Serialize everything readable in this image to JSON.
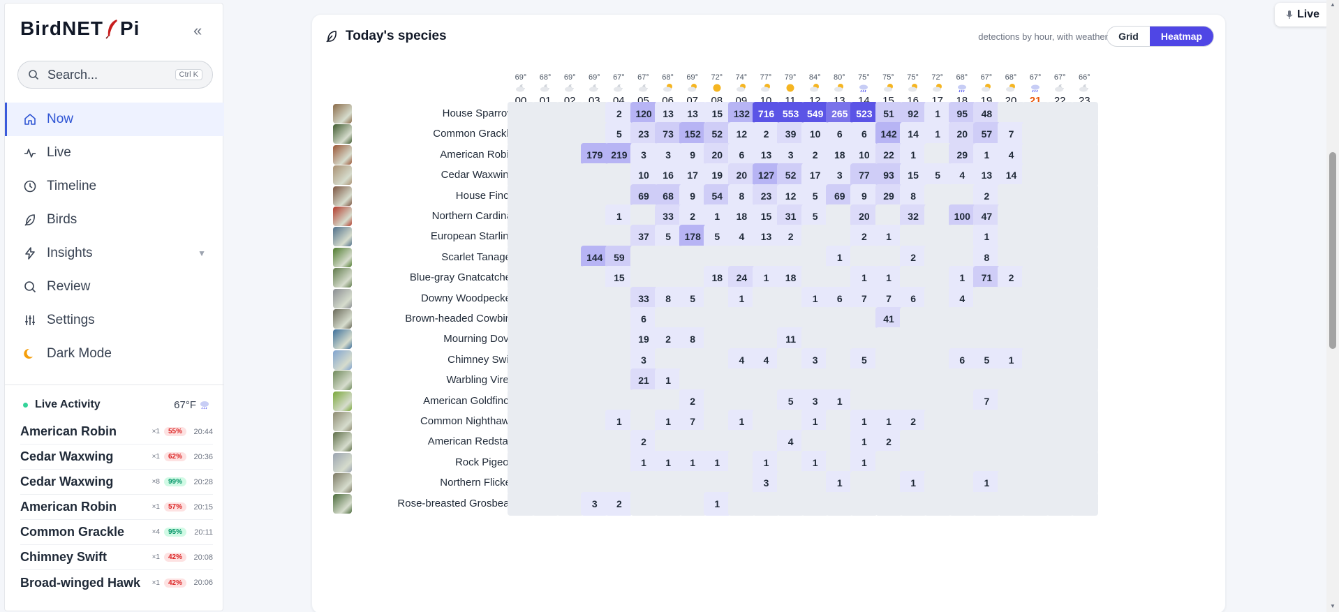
{
  "brand": {
    "name_left": "BirdNET",
    "name_right": "Pi"
  },
  "search": {
    "placeholder": "Search...",
    "shortcut": "Ctrl K"
  },
  "nav": [
    {
      "label": "Now",
      "icon": "home-icon",
      "active": true
    },
    {
      "label": "Live",
      "icon": "pulse-icon"
    },
    {
      "label": "Timeline",
      "icon": "clock-icon"
    },
    {
      "label": "Birds",
      "icon": "feather-icon"
    },
    {
      "label": "Insights",
      "icon": "bolt-icon",
      "caret": "▼"
    },
    {
      "label": "Review",
      "icon": "search-icon"
    },
    {
      "label": "Settings",
      "icon": "sliders-icon"
    },
    {
      "label": "Dark Mode",
      "icon": "moon-icon"
    }
  ],
  "live_activity": {
    "title": "Live Activity",
    "temp": "67°F",
    "items": [
      {
        "name": "American Robin",
        "count": "×1",
        "conf": "55%",
        "conf_level": "low",
        "time": "20:44"
      },
      {
        "name": "Cedar Waxwing",
        "count": "×1",
        "conf": "62%",
        "conf_level": "low",
        "time": "20:36"
      },
      {
        "name": "Cedar Waxwing",
        "count": "×8",
        "conf": "99%",
        "conf_level": "high",
        "time": "20:28"
      },
      {
        "name": "American Robin",
        "count": "×1",
        "conf": "57%",
        "conf_level": "low",
        "time": "20:15"
      },
      {
        "name": "Common Grackle",
        "count": "×4",
        "conf": "95%",
        "conf_level": "high",
        "time": "20:11"
      },
      {
        "name": "Chimney Swift",
        "count": "×1",
        "conf": "42%",
        "conf_level": "low",
        "time": "20:08"
      },
      {
        "name": "Broad-winged Hawk",
        "count": "×1",
        "conf": "42%",
        "conf_level": "low",
        "time": "20:06"
      }
    ]
  },
  "card": {
    "title": "Today's species",
    "subtitle": "detections by hour, with weather",
    "toggle": [
      "Grid",
      "Heatmap"
    ],
    "active_view": "Heatmap"
  },
  "live_button": "Live",
  "hours": [
    "00",
    "01",
    "02",
    "03",
    "04",
    "05",
    "06",
    "07",
    "08",
    "09",
    "10",
    "11",
    "12",
    "13",
    "14",
    "15",
    "16",
    "17",
    "18",
    "19",
    "20",
    "21",
    "22",
    "23"
  ],
  "current_hour": "21",
  "temps": [
    "69°",
    "68°",
    "69°",
    "69°",
    "67°",
    "67°",
    "68°",
    "69°",
    "72°",
    "74°",
    "77°",
    "79°",
    "84°",
    "80°",
    "75°",
    "75°",
    "75°",
    "72°",
    "68°",
    "67°",
    "68°",
    "67°",
    "67°",
    "66°"
  ],
  "weather": [
    "cloud-moon",
    "cloud-moon",
    "cloud-moon",
    "cloud-moon",
    "cloud-moon",
    "cloud-moon",
    "cloud-sun",
    "cloud-sun",
    "sun",
    "cloud-sun",
    "cloud-sun",
    "sun",
    "cloud-sun",
    "cloud-sun",
    "rain",
    "cloud-sun",
    "cloud-sun",
    "cloud-sun",
    "rain",
    "cloud-sun",
    "cloud-sun",
    "rain",
    "cloud-moon",
    "cloud-moon"
  ],
  "species": [
    {
      "name": "House Sparrow",
      "color": "#8a6a48",
      "counts": [
        null,
        null,
        null,
        null,
        2,
        120,
        13,
        13,
        15,
        132,
        716,
        553,
        549,
        265,
        523,
        51,
        92,
        1,
        95,
        48,
        null,
        null,
        null,
        null
      ]
    },
    {
      "name": "Common Grackle",
      "color": "#3f5a2e",
      "counts": [
        null,
        null,
        null,
        null,
        5,
        23,
        73,
        152,
        52,
        12,
        2,
        39,
        10,
        6,
        6,
        142,
        14,
        1,
        20,
        57,
        7,
        null,
        null,
        null
      ]
    },
    {
      "name": "American Robin",
      "color": "#9a5535",
      "counts": [
        null,
        null,
        null,
        179,
        219,
        3,
        3,
        9,
        20,
        6,
        13,
        3,
        2,
        18,
        10,
        22,
        1,
        null,
        29,
        1,
        4,
        null,
        null,
        null
      ]
    },
    {
      "name": "Cedar Waxwing",
      "color": "#a99072",
      "counts": [
        null,
        null,
        null,
        null,
        null,
        10,
        16,
        17,
        19,
        20,
        127,
        52,
        17,
        3,
        77,
        93,
        15,
        5,
        4,
        13,
        14,
        null,
        null,
        null
      ]
    },
    {
      "name": "House Finch",
      "color": "#7c5440",
      "counts": [
        null,
        null,
        null,
        null,
        null,
        69,
        68,
        9,
        54,
        8,
        23,
        12,
        5,
        69,
        9,
        29,
        8,
        null,
        null,
        2,
        null,
        null,
        null,
        null
      ]
    },
    {
      "name": "Northern Cardinal",
      "color": "#b23a2a",
      "counts": [
        null,
        null,
        null,
        null,
        1,
        null,
        33,
        2,
        1,
        18,
        15,
        31,
        5,
        null,
        20,
        null,
        32,
        null,
        100,
        47,
        null,
        null,
        null,
        null
      ]
    },
    {
      "name": "European Starling",
      "color": "#4f6f8a",
      "counts": [
        null,
        null,
        null,
        null,
        null,
        37,
        5,
        178,
        5,
        4,
        13,
        2,
        null,
        null,
        2,
        1,
        null,
        null,
        null,
        1,
        null,
        null,
        null,
        null
      ]
    },
    {
      "name": "Scarlet Tanager",
      "color": "#4d7a2c",
      "counts": [
        null,
        null,
        null,
        144,
        59,
        null,
        null,
        null,
        null,
        null,
        null,
        null,
        null,
        1,
        null,
        null,
        2,
        null,
        null,
        8,
        null,
        null,
        null,
        null
      ]
    },
    {
      "name": "Blue-gray Gnatcatcher",
      "color": "#5f7a4a",
      "counts": [
        null,
        null,
        null,
        null,
        15,
        null,
        null,
        null,
        18,
        24,
        1,
        18,
        null,
        null,
        1,
        1,
        null,
        null,
        1,
        71,
        2,
        null,
        null,
        null
      ]
    },
    {
      "name": "Downy Woodpecker",
      "color": "#8a8e92",
      "counts": [
        null,
        null,
        null,
        null,
        null,
        33,
        8,
        5,
        null,
        1,
        null,
        null,
        1,
        6,
        7,
        7,
        6,
        null,
        4,
        null,
        null,
        null,
        null,
        null
      ]
    },
    {
      "name": "Brown-headed Cowbird",
      "color": "#6a6a5a",
      "counts": [
        null,
        null,
        null,
        null,
        null,
        6,
        null,
        null,
        null,
        null,
        null,
        null,
        null,
        null,
        null,
        41,
        null,
        null,
        null,
        null,
        null,
        null,
        null,
        null
      ]
    },
    {
      "name": "Mourning Dove",
      "color": "#3d6f9a",
      "counts": [
        null,
        null,
        null,
        null,
        null,
        19,
        2,
        8,
        null,
        null,
        null,
        11,
        null,
        null,
        null,
        null,
        null,
        null,
        null,
        null,
        null,
        null,
        null,
        null
      ]
    },
    {
      "name": "Chimney Swift",
      "color": "#7fa3cf",
      "counts": [
        null,
        null,
        null,
        null,
        null,
        3,
        null,
        null,
        null,
        4,
        4,
        null,
        3,
        null,
        5,
        null,
        null,
        null,
        6,
        5,
        1,
        null,
        null,
        null
      ]
    },
    {
      "name": "Warbling Vireo",
      "color": "#6f8a5a",
      "counts": [
        null,
        null,
        null,
        null,
        null,
        21,
        1,
        null,
        null,
        null,
        null,
        null,
        null,
        null,
        null,
        null,
        null,
        null,
        null,
        null,
        null,
        null,
        null,
        null
      ]
    },
    {
      "name": "American Goldfinch",
      "color": "#7aa83a",
      "counts": [
        null,
        null,
        null,
        null,
        null,
        null,
        null,
        2,
        null,
        null,
        null,
        5,
        3,
        1,
        null,
        null,
        null,
        null,
        null,
        7,
        null,
        null,
        null,
        null
      ]
    },
    {
      "name": "Common Nighthawk",
      "color": "#8d8a70",
      "counts": [
        null,
        null,
        null,
        null,
        1,
        null,
        1,
        7,
        null,
        1,
        null,
        null,
        1,
        null,
        1,
        1,
        2,
        null,
        null,
        null,
        null,
        null,
        null,
        null
      ]
    },
    {
      "name": "American Redstart",
      "color": "#5e6e48",
      "counts": [
        null,
        null,
        null,
        null,
        null,
        2,
        null,
        null,
        null,
        null,
        null,
        4,
        null,
        null,
        1,
        2,
        null,
        null,
        null,
        null,
        null,
        null,
        null,
        null
      ]
    },
    {
      "name": "Rock Pigeon",
      "color": "#9aa3b0",
      "counts": [
        null,
        null,
        null,
        null,
        null,
        1,
        1,
        1,
        1,
        null,
        1,
        null,
        1,
        null,
        1,
        null,
        null,
        null,
        null,
        null,
        null,
        null,
        null,
        null
      ]
    },
    {
      "name": "Northern Flicker",
      "color": "#7d7a64",
      "counts": [
        null,
        null,
        null,
        null,
        null,
        null,
        null,
        null,
        null,
        null,
        3,
        null,
        null,
        1,
        null,
        null,
        1,
        null,
        null,
        1,
        null,
        null,
        null,
        null
      ]
    },
    {
      "name": "Rose-breasted Grosbeak",
      "color": "#4a6a3a",
      "counts": [
        null,
        null,
        null,
        3,
        2,
        null,
        null,
        null,
        1,
        null,
        null,
        null,
        null,
        null,
        null,
        null,
        null,
        null,
        null,
        null,
        null,
        null,
        null,
        null
      ]
    }
  ]
}
